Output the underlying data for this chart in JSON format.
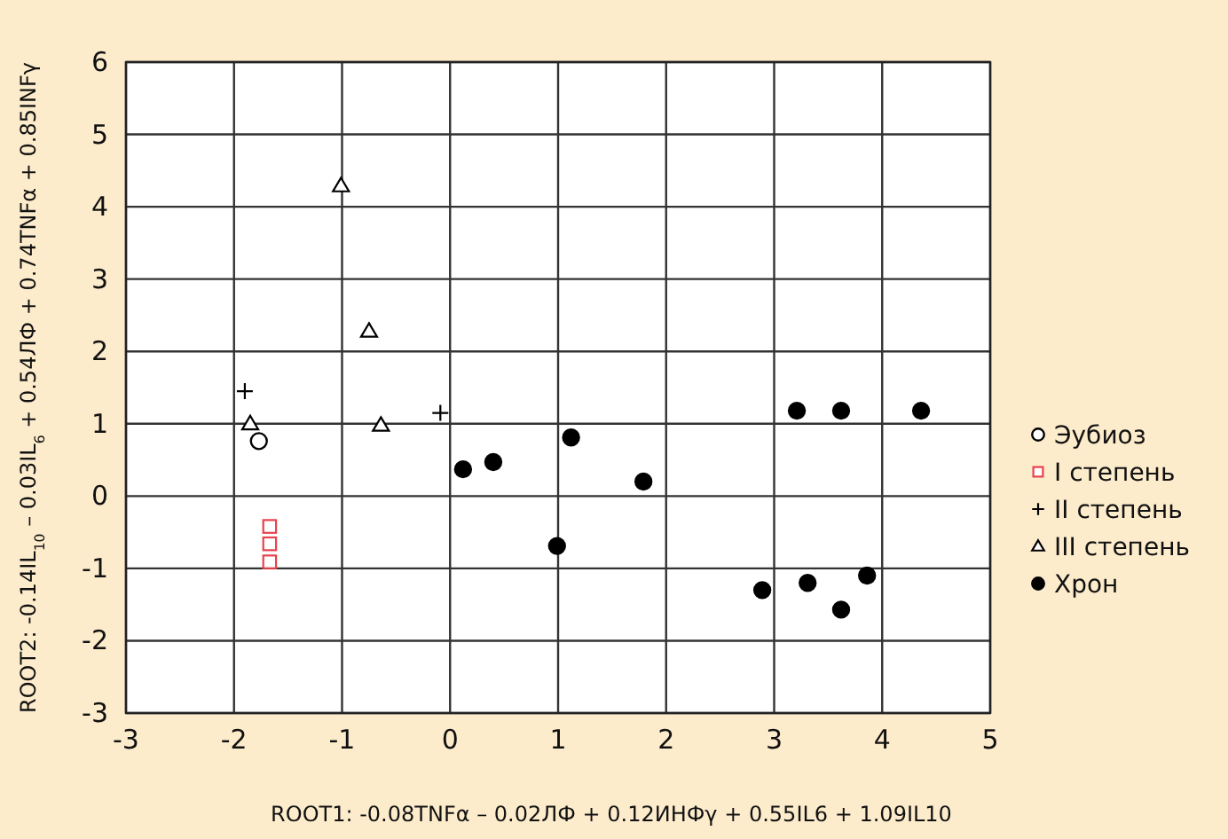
{
  "chart_data": {
    "type": "scatter",
    "xlabel": "ROOT1: -0.08TNFα – 0.02ЛФ + 0.12ИНФγ + 0.55IL6 + 1.09IL10",
    "ylabel": "ROOT2: -0.14IL$_{10}$ – 0.03IL$_{6}$ + 0.54ЛФ + 0.74TNFα + 0.85INFγ",
    "xlim": [
      -3,
      5
    ],
    "xticks": [
      -3,
      -2,
      -1,
      0,
      1,
      2,
      3,
      4,
      5
    ],
    "ylim": [
      -3,
      6
    ],
    "yticks": [
      -3,
      -2,
      -1,
      0,
      1,
      2,
      3,
      4,
      5,
      6
    ],
    "grid": true,
    "legend": "right",
    "series": [
      {
        "name": "Эубиоз",
        "color": "#000000",
        "marker": "circle",
        "x": [
          -1.77
        ],
        "values": [
          0.76
        ]
      },
      {
        "name": "I степень",
        "color": "#e8424c",
        "marker": "square",
        "x": [
          -1.67,
          -1.67,
          -1.67
        ],
        "values": [
          -0.42,
          -0.66,
          -0.91
        ]
      },
      {
        "name": "II степень",
        "color": "#000000",
        "marker": "cross",
        "x": [
          -1.9,
          -0.09
        ],
        "values": [
          1.45,
          1.15
        ]
      },
      {
        "name": "III степень",
        "color": "#000000",
        "marker": "triangle",
        "x": [
          -1.01,
          -0.75,
          -0.64,
          -1.85
        ],
        "values": [
          4.29,
          2.28,
          0.98,
          1.0
        ]
      },
      {
        "name": "Хрон",
        "color": "#000000",
        "marker": "circle",
        "x": [
          0.12,
          0.4,
          1.12,
          0.99,
          1.79,
          3.21,
          3.62,
          4.36,
          2.89,
          3.31,
          3.62,
          3.86
        ],
        "values": [
          0.37,
          0.47,
          0.81,
          -0.69,
          0.2,
          1.18,
          1.18,
          1.18,
          -1.3,
          -1.2,
          -1.57,
          -1.1
        ]
      }
    ]
  }
}
